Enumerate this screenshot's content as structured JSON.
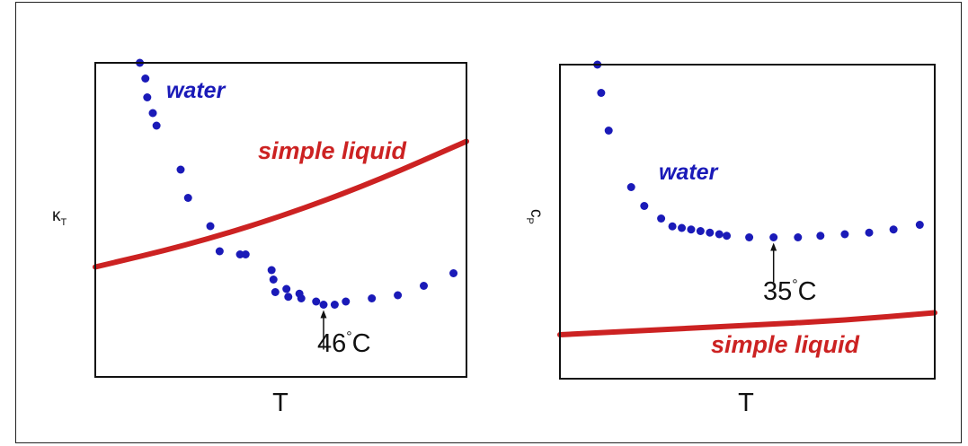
{
  "chart_data": [
    {
      "type": "scatter",
      "xlabel": "T",
      "ylabel": "κ_T",
      "ylabel_main": "κ",
      "ylabel_sub": "T",
      "xlim": [
        0,
        100
      ],
      "ylim": [
        0,
        100
      ],
      "grid": false,
      "ticks": "none",
      "series": [
        {
          "name": "water",
          "kind": "points",
          "color": "#1a1ab8",
          "points": [
            [
              12,
              100
            ],
            [
              13.5,
              95
            ],
            [
              14,
              89
            ],
            [
              15.5,
              84
            ],
            [
              16.5,
              80
            ],
            [
              23,
              66
            ],
            [
              25,
              57
            ],
            [
              31,
              48
            ],
            [
              33.5,
              40
            ],
            [
              39,
              39
            ],
            [
              40.5,
              39
            ],
            [
              47.5,
              34
            ],
            [
              48,
              31
            ],
            [
              48.5,
              27
            ],
            [
              51.5,
              28
            ],
            [
              52,
              25.5
            ],
            [
              55,
              26.5
            ],
            [
              55.5,
              25
            ],
            [
              59.5,
              24
            ],
            [
              61.5,
              23
            ],
            [
              64.5,
              23
            ],
            [
              67.5,
              24
            ],
            [
              74.5,
              25
            ],
            [
              81.5,
              26
            ],
            [
              88.5,
              29
            ],
            [
              96.5,
              33
            ]
          ]
        },
        {
          "name": "simple liquid",
          "kind": "line",
          "color": "#cc2222",
          "points": [
            [
              0,
              35
            ],
            [
              25,
              42
            ],
            [
              50,
              51
            ],
            [
              75,
              62
            ],
            [
              100,
              75
            ]
          ]
        }
      ],
      "annotations": [
        {
          "text": "46",
          "superscript": "°",
          "suffix": "C",
          "x": 61.5,
          "y": 23
        }
      ]
    },
    {
      "type": "scatter",
      "xlabel": "T",
      "ylabel": "c_P",
      "ylabel_main": "c",
      "ylabel_sub": "P",
      "xlim": [
        0,
        100
      ],
      "ylim": [
        0,
        100
      ],
      "grid": false,
      "ticks": "none",
      "series": [
        {
          "name": "water",
          "kind": "points",
          "color": "#1a1ab8",
          "points": [
            [
              10,
              100
            ],
            [
              11,
              91
            ],
            [
              13,
              79
            ],
            [
              19,
              61
            ],
            [
              22.5,
              55
            ],
            [
              27,
              51
            ],
            [
              30,
              48.5
            ],
            [
              32.5,
              48
            ],
            [
              35,
              47.5
            ],
            [
              37.5,
              47
            ],
            [
              40,
              46.5
            ],
            [
              42.5,
              46
            ],
            [
              44.5,
              45.5
            ],
            [
              50.5,
              45
            ],
            [
              57,
              45
            ],
            [
              63.5,
              45
            ],
            [
              69.5,
              45.5
            ],
            [
              76,
              46
            ],
            [
              82.5,
              46.5
            ],
            [
              89,
              47.5
            ],
            [
              96,
              49
            ]
          ]
        },
        {
          "name": "simple liquid",
          "kind": "line",
          "color": "#cc2222",
          "points": [
            [
              0,
              14
            ],
            [
              25,
              15.5
            ],
            [
              50,
              17
            ],
            [
              75,
              18.5
            ],
            [
              100,
              21
            ]
          ]
        }
      ],
      "annotations": [
        {
          "text": "35",
          "superscript": "°",
          "suffix": "C",
          "x": 57,
          "y": 45
        }
      ]
    }
  ]
}
